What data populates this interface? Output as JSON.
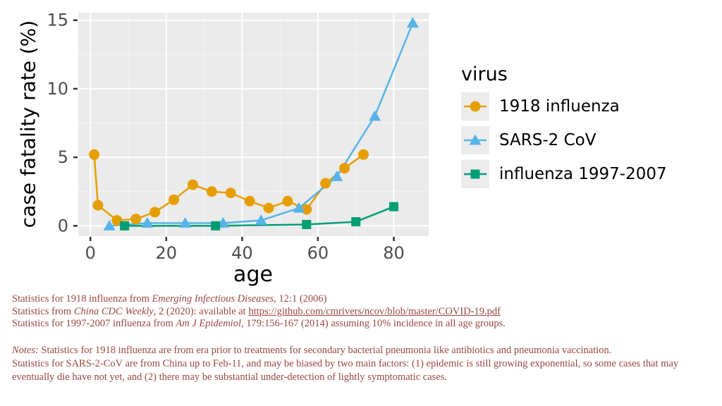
{
  "chart_data": {
    "type": "line",
    "title": "",
    "xlabel": "age",
    "ylabel": "case fatality rate (%)",
    "xlim": [
      -3.2,
      89.2
    ],
    "ylim": [
      -0.75,
      15.55
    ],
    "x_ticks": [
      0,
      20,
      40,
      60,
      80
    ],
    "y_ticks": [
      0,
      5,
      10,
      15
    ],
    "x_minor_ticks": [
      10,
      30,
      50,
      70
    ],
    "y_minor_ticks": [
      2.5,
      7.5,
      12.5
    ],
    "grid": true,
    "panel_bg": "#ebebeb",
    "grid_major_color": "#ffffff",
    "grid_minor_color": "#f5f5f5",
    "tick_label_color": "#4d4d4d",
    "tick_mark_color": "#333333",
    "legend_title": "virus",
    "legend_position": "right",
    "series": [
      {
        "name": "1918 influenza",
        "marker": "circle",
        "color": "#E69F00",
        "x": [
          1,
          2,
          7,
          12,
          17,
          22,
          27,
          32,
          37,
          42,
          47,
          52,
          57,
          62,
          67,
          72
        ],
        "y": [
          5.2,
          1.5,
          0.4,
          0.5,
          1.0,
          1.9,
          3.0,
          2.5,
          2.4,
          1.8,
          1.3,
          1.8,
          1.2,
          3.1,
          4.2,
          5.2
        ]
      },
      {
        "name": "SARS-2 CoV",
        "marker": "triangle",
        "color": "#56B4E9",
        "x": [
          5,
          15,
          25,
          35,
          45,
          55,
          65,
          75,
          85
        ],
        "y": [
          0.0,
          0.2,
          0.2,
          0.2,
          0.4,
          1.3,
          3.6,
          8.0,
          14.8
        ]
      },
      {
        "name": "influenza 1997-2007",
        "marker": "square",
        "color": "#009E73",
        "x": [
          9,
          33,
          57,
          70,
          80
        ],
        "y": [
          0.0,
          0.0,
          0.1,
          0.3,
          1.4
        ]
      }
    ]
  },
  "footnotes": {
    "text_color": "#9a4741",
    "references": [
      [
        {
          "t": "Statistics for 1918 influenza from ",
          "s": "n"
        },
        {
          "t": "Emerging Infectious Diseases",
          "s": "i"
        },
        {
          "t": ", 12:1 (2006)",
          "s": "n"
        }
      ],
      [
        {
          "t": "Statistics from ",
          "s": "n"
        },
        {
          "t": "China CDC Weekly",
          "s": "i"
        },
        {
          "t": ", 2 (2020): available at ",
          "s": "n"
        },
        {
          "t": "https://github.com/cmrivers/ncov/blob/master/COVID-19.pdf",
          "s": "l"
        }
      ],
      [
        {
          "t": "Statistics for 1997-2007 influenza from ",
          "s": "n"
        },
        {
          "t": "Am J Epidemiol",
          "s": "i"
        },
        {
          "t": ", 179:156-167 (2014) assuming 10% incidence in all age groups.",
          "s": "n"
        }
      ]
    ],
    "notes": [
      [
        {
          "t": "Notes:",
          "s": "i"
        },
        {
          "t": " Statistics for 1918 influenza are from era prior to treatments for secondary bacterial pneumonia like antibiotics and pneumonia vaccination.",
          "s": "n"
        }
      ],
      [
        {
          "t": "Statistics for SARS-2-CoV are from China up to Feb-11, and may be biased by two main factors: (1) epidemic is still growing exponential, so some cases that may",
          "s": "n"
        }
      ],
      [
        {
          "t": "eventually die have not yet, and (2) there may be substantial under-detection of lightly symptomatic cases.",
          "s": "n"
        }
      ]
    ]
  }
}
